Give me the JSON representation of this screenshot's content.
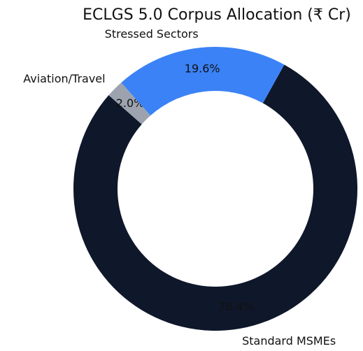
{
  "chart_data": {
    "type": "pie",
    "title": "ECLGS 5.0 Corpus Allocation (₹ Cr)",
    "categories": [
      "Standard MSMEs",
      "Aviation/Travel",
      "Stressed Sectors"
    ],
    "values": [
      78.4,
      2.0,
      19.6
    ],
    "value_labels": [
      "78.4%",
      "2.0%",
      "19.6%"
    ],
    "colors": [
      "#0f172a",
      "#9ca3af",
      "#3b82f6"
    ]
  }
}
